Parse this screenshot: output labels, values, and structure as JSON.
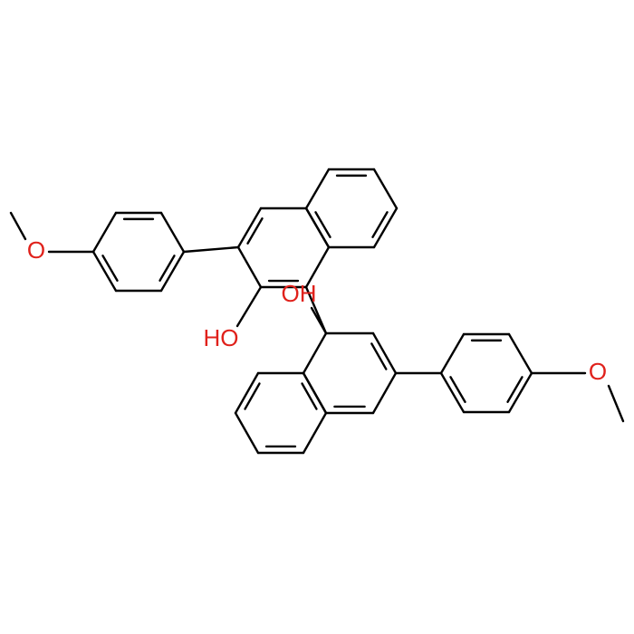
{
  "labels": {
    "hydroxyl_upper": "HO",
    "hydroxyl_lower": "OH",
    "methoxy_upper": "O",
    "methoxy_lower": "O"
  }
}
